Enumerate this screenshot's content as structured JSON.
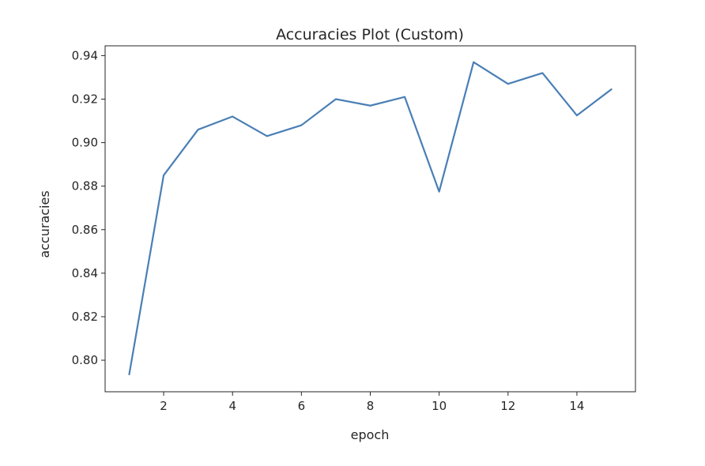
{
  "chart_data": {
    "type": "line",
    "title": "Accuracies Plot (Custom)",
    "xlabel": "epoch",
    "ylabel": "accuracies",
    "xlim": [
      0.3,
      15.7
    ],
    "ylim": [
      0.7855,
      0.9445
    ],
    "xticks": [
      2,
      4,
      6,
      8,
      10,
      12,
      14
    ],
    "yticks": [
      0.8,
      0.82,
      0.84,
      0.86,
      0.88,
      0.9,
      0.92,
      0.94
    ],
    "xtick_labels": [
      "2",
      "4",
      "6",
      "8",
      "10",
      "12",
      "14"
    ],
    "ytick_labels": [
      "0.80",
      "0.82",
      "0.84",
      "0.86",
      "0.88",
      "0.90",
      "0.92",
      "0.94"
    ],
    "grid": false,
    "legend": "none",
    "series": [
      {
        "color": "#4a7fb5",
        "x": [
          1,
          2,
          3,
          4,
          5,
          6,
          7,
          8,
          9,
          10,
          11,
          12,
          13,
          14,
          15
        ],
        "y": [
          0.7935,
          0.885,
          0.906,
          0.912,
          0.903,
          0.908,
          0.92,
          0.917,
          0.921,
          0.8775,
          0.937,
          0.927,
          0.932,
          0.9125,
          0.9245
        ]
      }
    ]
  }
}
